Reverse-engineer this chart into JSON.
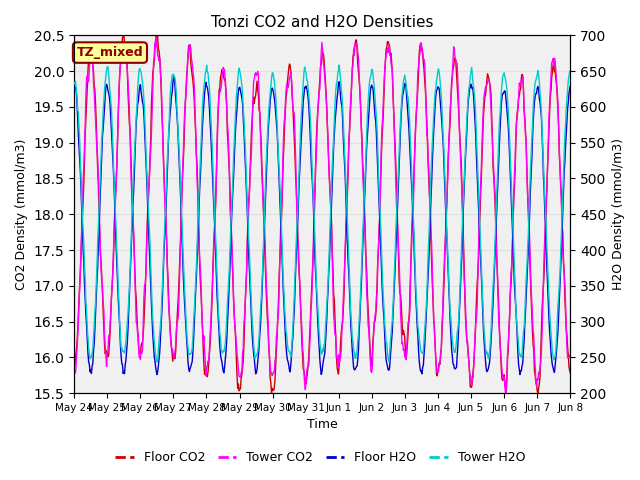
{
  "title": "Tonzi CO2 and H2O Densities",
  "xlabel": "Time",
  "ylabel_left": "CO2 Density (mmol/m3)",
  "ylabel_right": "H2O Density (mmol/m3)",
  "ylim_left": [
    15.5,
    20.5
  ],
  "ylim_right": [
    200,
    700
  ],
  "annotation_text": "TZ_mixed",
  "annotation_color": "#8B0000",
  "annotation_bg": "#FFFF99",
  "annotation_border": "#8B0000",
  "grid_color": "#E0E0E0",
  "colors": {
    "floor_co2": "#CC0000",
    "tower_co2": "#FF00FF",
    "floor_h2o": "#0000CC",
    "tower_h2o": "#00CCCC"
  },
  "legend_labels": [
    "Floor CO2",
    "Tower CO2",
    "Floor H2O",
    "Tower H2O"
  ],
  "tick_labels": [
    "May 24",
    "May 25",
    "May 26",
    "May 27",
    "May 28",
    "May 29",
    "May 30",
    "May 31",
    "Jun 1",
    "Jun 2",
    "Jun 3",
    "Jun 4",
    "Jun 5",
    "Jun 6",
    "Jun 7",
    "Jun 8"
  ],
  "n_days": 15,
  "points_per_day": 48,
  "co2_base": 18.0,
  "co2_amp": 2.2,
  "h2o_base": 430,
  "h2o_amp": 200
}
